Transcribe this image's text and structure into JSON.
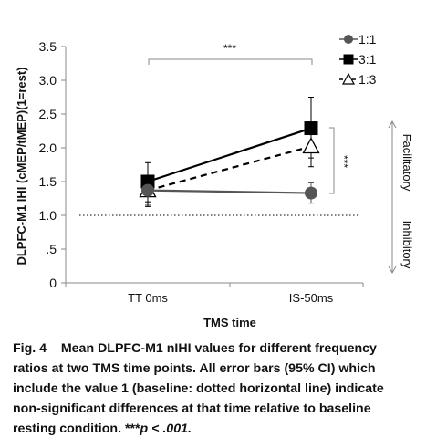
{
  "chart_data": {
    "type": "line",
    "categories": [
      "TT 0ms",
      "IS-50ms"
    ],
    "ylabel": "DLPFC-M1 IHI (cMEP/tMEP)(1=rest)",
    "xlabel": "TMS time",
    "ylim": [
      0,
      3.5
    ],
    "yticks": [
      "0",
      ".5",
      "1.0",
      "1.5",
      "2.0",
      "2.5",
      "3.0",
      "3.5"
    ],
    "legend_position": "top-right",
    "series": [
      {
        "name": "1:1",
        "marker": "circle",
        "line": "solid",
        "color": "#555555",
        "values": [
          1.37,
          1.33
        ],
        "err_low": [
          1.15,
          1.18
        ],
        "err_high": [
          1.58,
          1.48
        ]
      },
      {
        "name": "3:1",
        "marker": "square",
        "line": "solid",
        "color": "#000000",
        "values": [
          1.5,
          2.29
        ],
        "err_low": [
          1.2,
          1.85
        ],
        "err_high": [
          1.78,
          2.75
        ]
      },
      {
        "name": "1:3",
        "marker": "triangle-open",
        "line": "dashed",
        "color": "#000000",
        "values": [
          1.37,
          2.02
        ],
        "err_low": [
          1.13,
          1.72
        ],
        "err_high": [
          1.55,
          2.2
        ]
      }
    ],
    "baseline": 1.0,
    "region_labels": {
      "upper": "Facilitatory",
      "lower": "Inhibitory"
    },
    "annotations": {
      "top_significance": "***",
      "side_significance": "***"
    }
  },
  "caption": {
    "label": "Fig. 4",
    "text": "Mean DLPFC-M1 nIHI values for different frequency ratios at two TMS time points. All error bars (95% CI) which include the value 1 (baseline: dotted horizontal line) indicate non-significant differences at that time relative to baseline resting condition. ***",
    "p_value": "p < .001."
  },
  "colors": {
    "axis": "#888888",
    "baseline": "#555555",
    "text": "#111111"
  }
}
